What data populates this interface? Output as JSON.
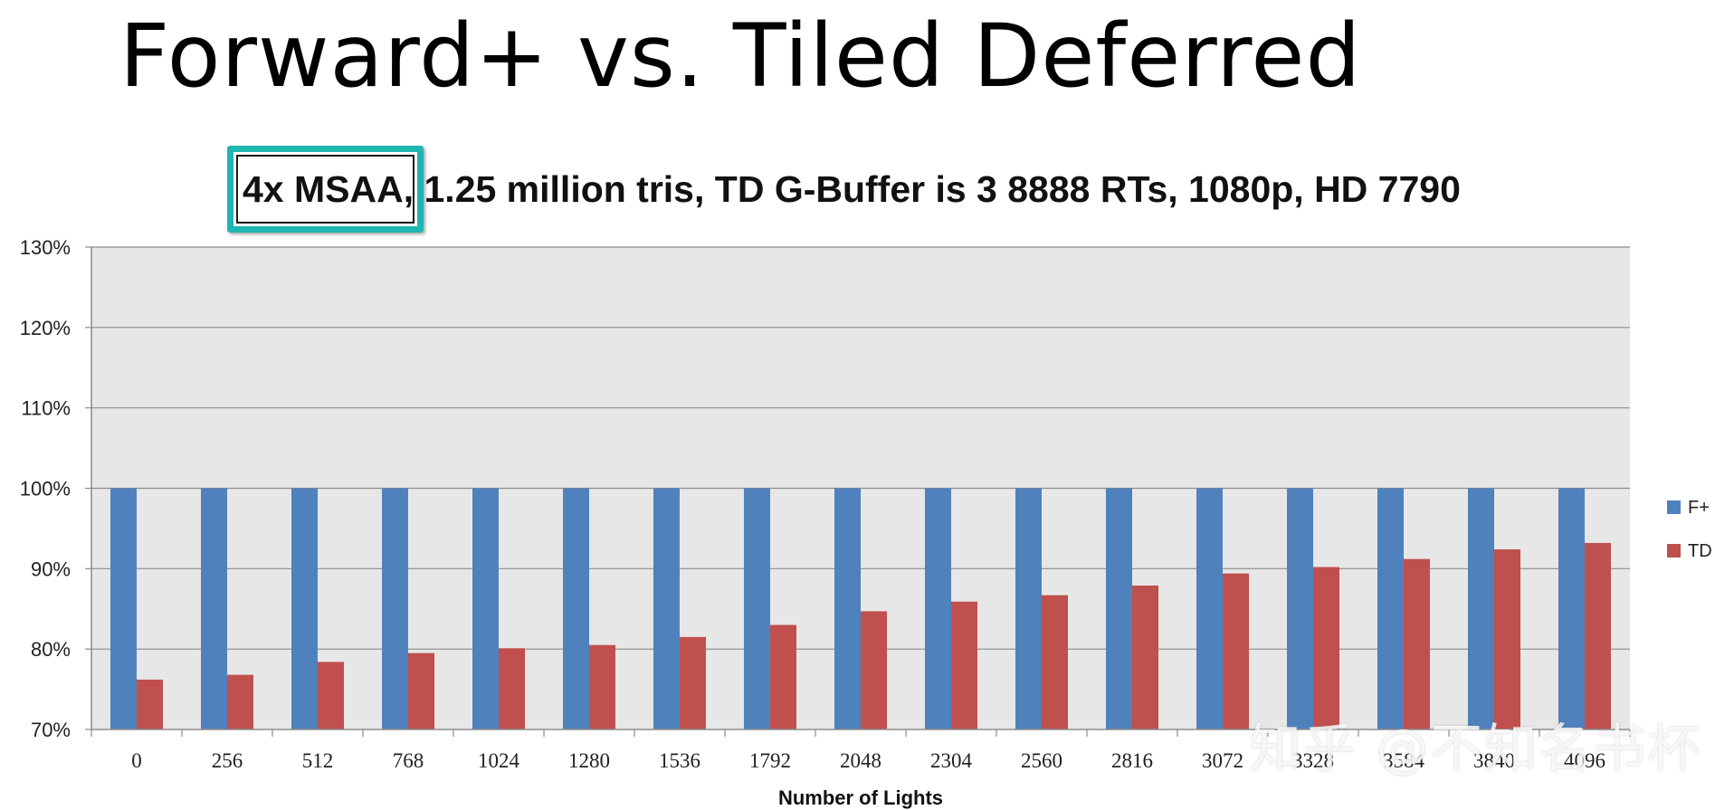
{
  "slide": {
    "title": "Forward+ vs. Tiled Deferred",
    "watermark": "知乎 @不知名书杯"
  },
  "chart_data": {
    "type": "bar",
    "title": "4x MSAA, 1.25 million tris, TD G-Buffer is 3 8888 RTs, 1080p, HD 7790",
    "highlighted_text": "4x MSAA",
    "xlabel": "Number of Lights",
    "ylabel": "",
    "ylim": [
      70,
      130
    ],
    "yticks": [
      70,
      80,
      90,
      100,
      110,
      120,
      130
    ],
    "ytick_labels": [
      "70%",
      "80%",
      "90%",
      "100%",
      "110%",
      "120%",
      "130%"
    ],
    "categories": [
      "0",
      "256",
      "512",
      "768",
      "1024",
      "1280",
      "1536",
      "1792",
      "2048",
      "2304",
      "2560",
      "2816",
      "3072",
      "3328",
      "3584",
      "3840",
      "4096"
    ],
    "series": [
      {
        "name": "F+",
        "color": "#4f81bd",
        "values": [
          100,
          100,
          100,
          100,
          100,
          100,
          100,
          100,
          100,
          100,
          100,
          100,
          100,
          100,
          100,
          100,
          100
        ]
      },
      {
        "name": "TD",
        "color": "#c0504d",
        "values": [
          76.2,
          76.8,
          78.4,
          79.5,
          80.1,
          80.5,
          81.5,
          83.0,
          84.7,
          85.9,
          86.7,
          87.9,
          89.4,
          90.2,
          91.2,
          92.4,
          93.2
        ]
      }
    ],
    "grid": true,
    "legend": "right",
    "plot_background": "#e7e7e7"
  }
}
